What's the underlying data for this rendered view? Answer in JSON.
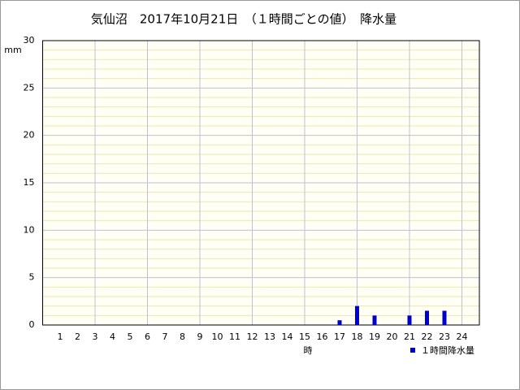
{
  "chart_data": {
    "type": "bar",
    "title": "気仙沼　2017年10月21日　（１時間ごとの値）　降水量",
    "y_label": "mm",
    "x_label": "時",
    "color": "#0000cc",
    "categories": [
      "1",
      "2",
      "3",
      "4",
      "5",
      "6",
      "7",
      "8",
      "9",
      "10",
      "11",
      "12",
      "13",
      "14",
      "15",
      "16",
      "17",
      "18",
      "19",
      "20",
      "21",
      "22",
      "23",
      "24"
    ],
    "series": [
      {
        "name": "１時間降水量",
        "color": "#0000cc",
        "values": [
          0,
          0,
          0,
          0,
          0,
          0,
          0,
          0,
          0,
          0,
          0,
          0,
          0,
          0,
          0,
          0,
          0.5,
          2.0,
          1.0,
          0,
          1.0,
          1.5,
          1.5,
          0
        ]
      }
    ],
    "ylim": [
      0,
      30
    ],
    "yticks": [
      0,
      5,
      10,
      15,
      20,
      25,
      30
    ],
    "grid": true
  }
}
